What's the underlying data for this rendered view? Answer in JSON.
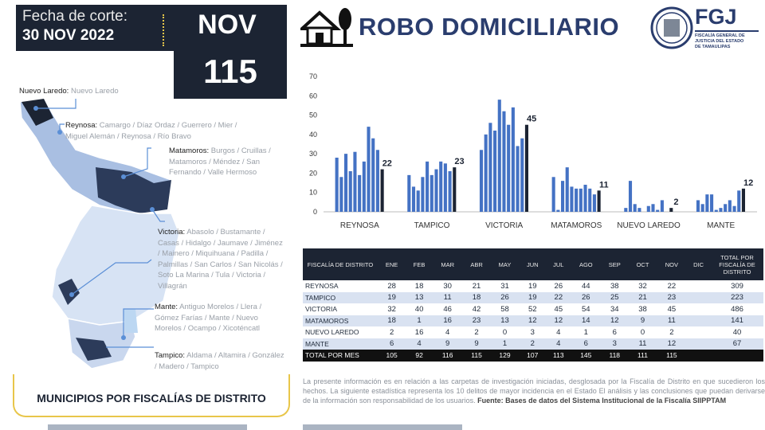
{
  "header": {
    "cut_label": "Fecha de corte:",
    "cut_date": "30 NOV 2022",
    "month": "NOV",
    "month_total": "115"
  },
  "title": "ROBO DOMICILIARIO",
  "logo": {
    "acronym": "FGJ",
    "line1": "FISCALÍA GENERAL DE",
    "line2": "JUSTICIA DEL ESTADO",
    "line3": "DE TAMAULIPAS"
  },
  "regions": [
    {
      "name": "Nuevo Laredo:",
      "munis": "Nuevo Laredo"
    },
    {
      "name": "Reynosa:",
      "munis": "Camargo / Díaz Ordaz / Guerrero / Mier / Miguel Alemán / Reynosa / Río Bravo"
    },
    {
      "name": "Matamoros:",
      "munis": "Burgos / Cruillas / Matamoros / Méndez / San Fernando / Valle Hermoso"
    },
    {
      "name": "Victoria:",
      "munis": "Abasolo / Bustamante / Casas / Hidalgo / Jaumave / Jiménez / Mainero / Miquihuana / Padilla / Palmillas / San Carlos / San Nicolás / Soto La Marina / Tula / Victoria / Villagrán"
    },
    {
      "name": "Mante:",
      "munis": "Antiguo Morelos / Llera / Gómez Farías / Mante / Nuevo Morelos / Ocampo / Xicoténcatl"
    },
    {
      "name": "Tampico:",
      "munis": "Aldama / Altamira / González / Madero / Tampico"
    }
  ],
  "map_caption": "MUNICIPIOS POR FISCALÍAS DE DISTRITO",
  "chart_data": {
    "type": "bar",
    "yticks": [
      0,
      10,
      20,
      30,
      40,
      50,
      60,
      70
    ],
    "ylim": [
      0,
      70
    ],
    "groups": [
      "REYNOSA",
      "TAMPICO",
      "VICTORIA",
      "MATAMOROS",
      "NUEVO LAREDO",
      "MANTE"
    ],
    "months": [
      "ENE",
      "FEB",
      "MAR",
      "ABR",
      "MAY",
      "JUN",
      "JUL",
      "AGO",
      "SEP",
      "OCT",
      "NOV"
    ],
    "values": [
      [
        28,
        18,
        30,
        21,
        31,
        19,
        26,
        44,
        38,
        32,
        22
      ],
      [
        19,
        13,
        11,
        18,
        26,
        19,
        22,
        26,
        25,
        21,
        23
      ],
      [
        32,
        40,
        46,
        42,
        58,
        52,
        45,
        54,
        34,
        38,
        45
      ],
      [
        18,
        1,
        16,
        23,
        13,
        12,
        12,
        14,
        12,
        9,
        11
      ],
      [
        2,
        16,
        4,
        2,
        0,
        3,
        4,
        1,
        6,
        0,
        2
      ],
      [
        6,
        4,
        9,
        9,
        1,
        2,
        4,
        6,
        3,
        11,
        12
      ]
    ],
    "data_labels": [
      "22",
      "23",
      "45",
      "11",
      "2",
      "12"
    ],
    "colors": {
      "bar": "#4472c4",
      "last": "#1c2433"
    }
  },
  "table": {
    "headers": [
      "FISCALÍA DE DISTRITO",
      "ENE",
      "FEB",
      "MAR",
      "ABR",
      "MAY",
      "JUN",
      "JUL",
      "AGO",
      "SEP",
      "OCT",
      "NOV",
      "DIC",
      "TOTAL POR FISCALÍA DE DISTRITO"
    ],
    "rows": [
      [
        "REYNOSA",
        "28",
        "18",
        "30",
        "21",
        "31",
        "19",
        "26",
        "44",
        "38",
        "32",
        "22",
        "",
        "309"
      ],
      [
        "TAMPICO",
        "19",
        "13",
        "11",
        "18",
        "26",
        "19",
        "22",
        "26",
        "25",
        "21",
        "23",
        "",
        "223"
      ],
      [
        "VICTORIA",
        "32",
        "40",
        "46",
        "42",
        "58",
        "52",
        "45",
        "54",
        "34",
        "38",
        "45",
        "",
        "486"
      ],
      [
        "MATAMOROS",
        "18",
        "1",
        "16",
        "23",
        "13",
        "12",
        "12",
        "14",
        "12",
        "9",
        "11",
        "",
        "141"
      ],
      [
        "NUEVO LAREDO",
        "2",
        "16",
        "4",
        "2",
        "0",
        "3",
        "4",
        "1",
        "6",
        "0",
        "2",
        "",
        "40"
      ],
      [
        "MANTE",
        "6",
        "4",
        "9",
        "9",
        "1",
        "2",
        "4",
        "6",
        "3",
        "11",
        "12",
        "",
        "67"
      ]
    ],
    "total_row": [
      "TOTAL POR MES",
      "105",
      "92",
      "116",
      "115",
      "129",
      "107",
      "113",
      "145",
      "118",
      "111",
      "115",
      "",
      ""
    ]
  },
  "note": {
    "text": "La presente información es en relación a las carpetas de investigación iniciadas, desglosada por la Fiscalía de Distrito en que sucedieron los hechos. La siguiente estadística representa los 10 delitos de mayor incidencia en el Estado El análisis y las conclusiones que puedan derivarse de la información son responsabilidad de los usuarios.",
    "source": "Fuente: Bases de datos del Sistema Institucional de la Fiscalía SIIPPTAM"
  },
  "icons": {
    "house": "house-tree-icon",
    "seal": "state-seal-icon"
  }
}
